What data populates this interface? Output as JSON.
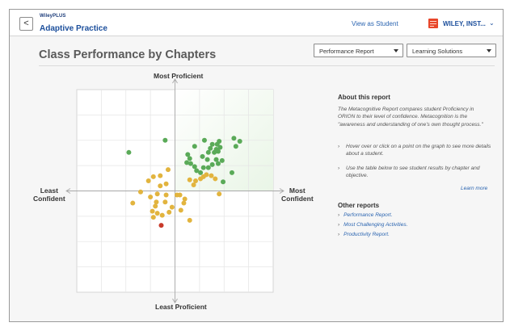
{
  "header": {
    "back_label": "<",
    "brand": "WileyPLUS",
    "app_title": "Adaptive Practice",
    "view_as_student": "View as Student",
    "institution": "WILEY, INST...",
    "institution_chevron": "⌄"
  },
  "page": {
    "title": "Class Performance by Chapters",
    "report_select": "Performance Report",
    "solutions_select": "Learning Solutions"
  },
  "chart_data": {
    "type": "scatter",
    "labels": {
      "top": "Most Proficient",
      "bottom": "Least Proficient",
      "left_line1": "Least",
      "left_line2": "Confident",
      "right_line1": "Most",
      "right_line2": "Confident"
    },
    "xlim": [
      -1,
      1
    ],
    "ylim": [
      -1,
      1
    ],
    "grid": true,
    "colors": {
      "green": "#5aaa58",
      "yellow": "#e2b43e",
      "red": "#c83a2a"
    },
    "points": [
      {
        "x": 0.6,
        "y": 0.52,
        "c": "green"
      },
      {
        "x": 0.66,
        "y": 0.49,
        "c": "green"
      },
      {
        "x": 0.62,
        "y": 0.44,
        "c": "green"
      },
      {
        "x": 0.45,
        "y": 0.49,
        "c": "green"
      },
      {
        "x": 0.43,
        "y": 0.46,
        "c": "green"
      },
      {
        "x": 0.46,
        "y": 0.43,
        "c": "green"
      },
      {
        "x": 0.42,
        "y": 0.41,
        "c": "green"
      },
      {
        "x": 0.44,
        "y": 0.39,
        "c": "green"
      },
      {
        "x": 0.4,
        "y": 0.38,
        "c": "green"
      },
      {
        "x": 0.38,
        "y": 0.46,
        "c": "green"
      },
      {
        "x": 0.36,
        "y": 0.42,
        "c": "green"
      },
      {
        "x": 0.34,
        "y": 0.38,
        "c": "green"
      },
      {
        "x": 0.3,
        "y": 0.5,
        "c": "green"
      },
      {
        "x": 0.33,
        "y": 0.31,
        "c": "green"
      },
      {
        "x": 0.28,
        "y": 0.34,
        "c": "green"
      },
      {
        "x": 0.42,
        "y": 0.31,
        "c": "green"
      },
      {
        "x": 0.44,
        "y": 0.27,
        "c": "green"
      },
      {
        "x": 0.48,
        "y": 0.3,
        "c": "green"
      },
      {
        "x": 0.38,
        "y": 0.26,
        "c": "green"
      },
      {
        "x": 0.34,
        "y": 0.23,
        "c": "green"
      },
      {
        "x": 0.29,
        "y": 0.23,
        "c": "green"
      },
      {
        "x": 0.2,
        "y": 0.44,
        "c": "green"
      },
      {
        "x": 0.13,
        "y": 0.36,
        "c": "green"
      },
      {
        "x": 0.15,
        "y": 0.32,
        "c": "green"
      },
      {
        "x": 0.12,
        "y": 0.28,
        "c": "green"
      },
      {
        "x": 0.16,
        "y": 0.27,
        "c": "green"
      },
      {
        "x": 0.2,
        "y": 0.24,
        "c": "green"
      },
      {
        "x": 0.22,
        "y": 0.2,
        "c": "green"
      },
      {
        "x": 0.26,
        "y": 0.18,
        "c": "green"
      },
      {
        "x": 0.58,
        "y": 0.18,
        "c": "green"
      },
      {
        "x": 0.49,
        "y": 0.09,
        "c": "green"
      },
      {
        "x": -0.1,
        "y": 0.5,
        "c": "green"
      },
      {
        "x": -0.47,
        "y": 0.38,
        "c": "green"
      },
      {
        "x": 0.26,
        "y": 0.12,
        "c": "yellow"
      },
      {
        "x": 0.29,
        "y": 0.14,
        "c": "yellow"
      },
      {
        "x": 0.32,
        "y": 0.16,
        "c": "yellow"
      },
      {
        "x": 0.37,
        "y": 0.15,
        "c": "yellow"
      },
      {
        "x": 0.41,
        "y": 0.12,
        "c": "yellow"
      },
      {
        "x": 0.45,
        "y": -0.03,
        "c": "yellow"
      },
      {
        "x": 0.15,
        "y": 0.11,
        "c": "yellow"
      },
      {
        "x": 0.21,
        "y": 0.1,
        "c": "yellow"
      },
      {
        "x": 0.19,
        "y": 0.06,
        "c": "yellow"
      },
      {
        "x": -0.07,
        "y": 0.21,
        "c": "yellow"
      },
      {
        "x": -0.15,
        "y": 0.15,
        "c": "yellow"
      },
      {
        "x": -0.22,
        "y": 0.14,
        "c": "yellow"
      },
      {
        "x": -0.27,
        "y": 0.1,
        "c": "yellow"
      },
      {
        "x": -0.09,
        "y": 0.07,
        "c": "yellow"
      },
      {
        "x": -0.15,
        "y": 0.05,
        "c": "yellow"
      },
      {
        "x": -0.35,
        "y": -0.01,
        "c": "yellow"
      },
      {
        "x": -0.18,
        "y": -0.03,
        "c": "yellow"
      },
      {
        "x": -0.09,
        "y": -0.04,
        "c": "yellow"
      },
      {
        "x": -0.25,
        "y": -0.06,
        "c": "yellow"
      },
      {
        "x": 0.02,
        "y": -0.04,
        "c": "yellow"
      },
      {
        "x": 0.05,
        "y": -0.04,
        "c": "yellow"
      },
      {
        "x": 0.1,
        "y": -0.08,
        "c": "yellow"
      },
      {
        "x": 0.09,
        "y": -0.12,
        "c": "yellow"
      },
      {
        "x": -0.43,
        "y": -0.12,
        "c": "yellow"
      },
      {
        "x": -0.19,
        "y": -0.11,
        "c": "yellow"
      },
      {
        "x": -0.1,
        "y": -0.11,
        "c": "yellow"
      },
      {
        "x": -0.2,
        "y": -0.15,
        "c": "yellow"
      },
      {
        "x": -0.03,
        "y": -0.16,
        "c": "yellow"
      },
      {
        "x": -0.23,
        "y": -0.2,
        "c": "yellow"
      },
      {
        "x": -0.18,
        "y": -0.22,
        "c": "yellow"
      },
      {
        "x": -0.06,
        "y": -0.21,
        "c": "yellow"
      },
      {
        "x": -0.22,
        "y": -0.26,
        "c": "yellow"
      },
      {
        "x": -0.13,
        "y": -0.24,
        "c": "yellow"
      },
      {
        "x": 0.06,
        "y": -0.19,
        "c": "yellow"
      },
      {
        "x": 0.15,
        "y": -0.29,
        "c": "yellow"
      },
      {
        "x": -0.14,
        "y": -0.34,
        "c": "red"
      }
    ]
  },
  "about": {
    "title": "About this report",
    "text": "The Metacognitive Report compares student Proficiency in ORION to their level of confidence. Metacognition is the \"awareness and understanding of one's own thought process.\"",
    "bullet1": "Hover over or click on a point on the graph to see more details about a student.",
    "bullet2": "Use the table below to see student results by chapter and objective.",
    "learn_more": "Learn more"
  },
  "other_reports": {
    "title": "Other reports",
    "link1": "Performance Report.",
    "link2": "Most Challenging Activities.",
    "link3": "Productivity Report."
  }
}
